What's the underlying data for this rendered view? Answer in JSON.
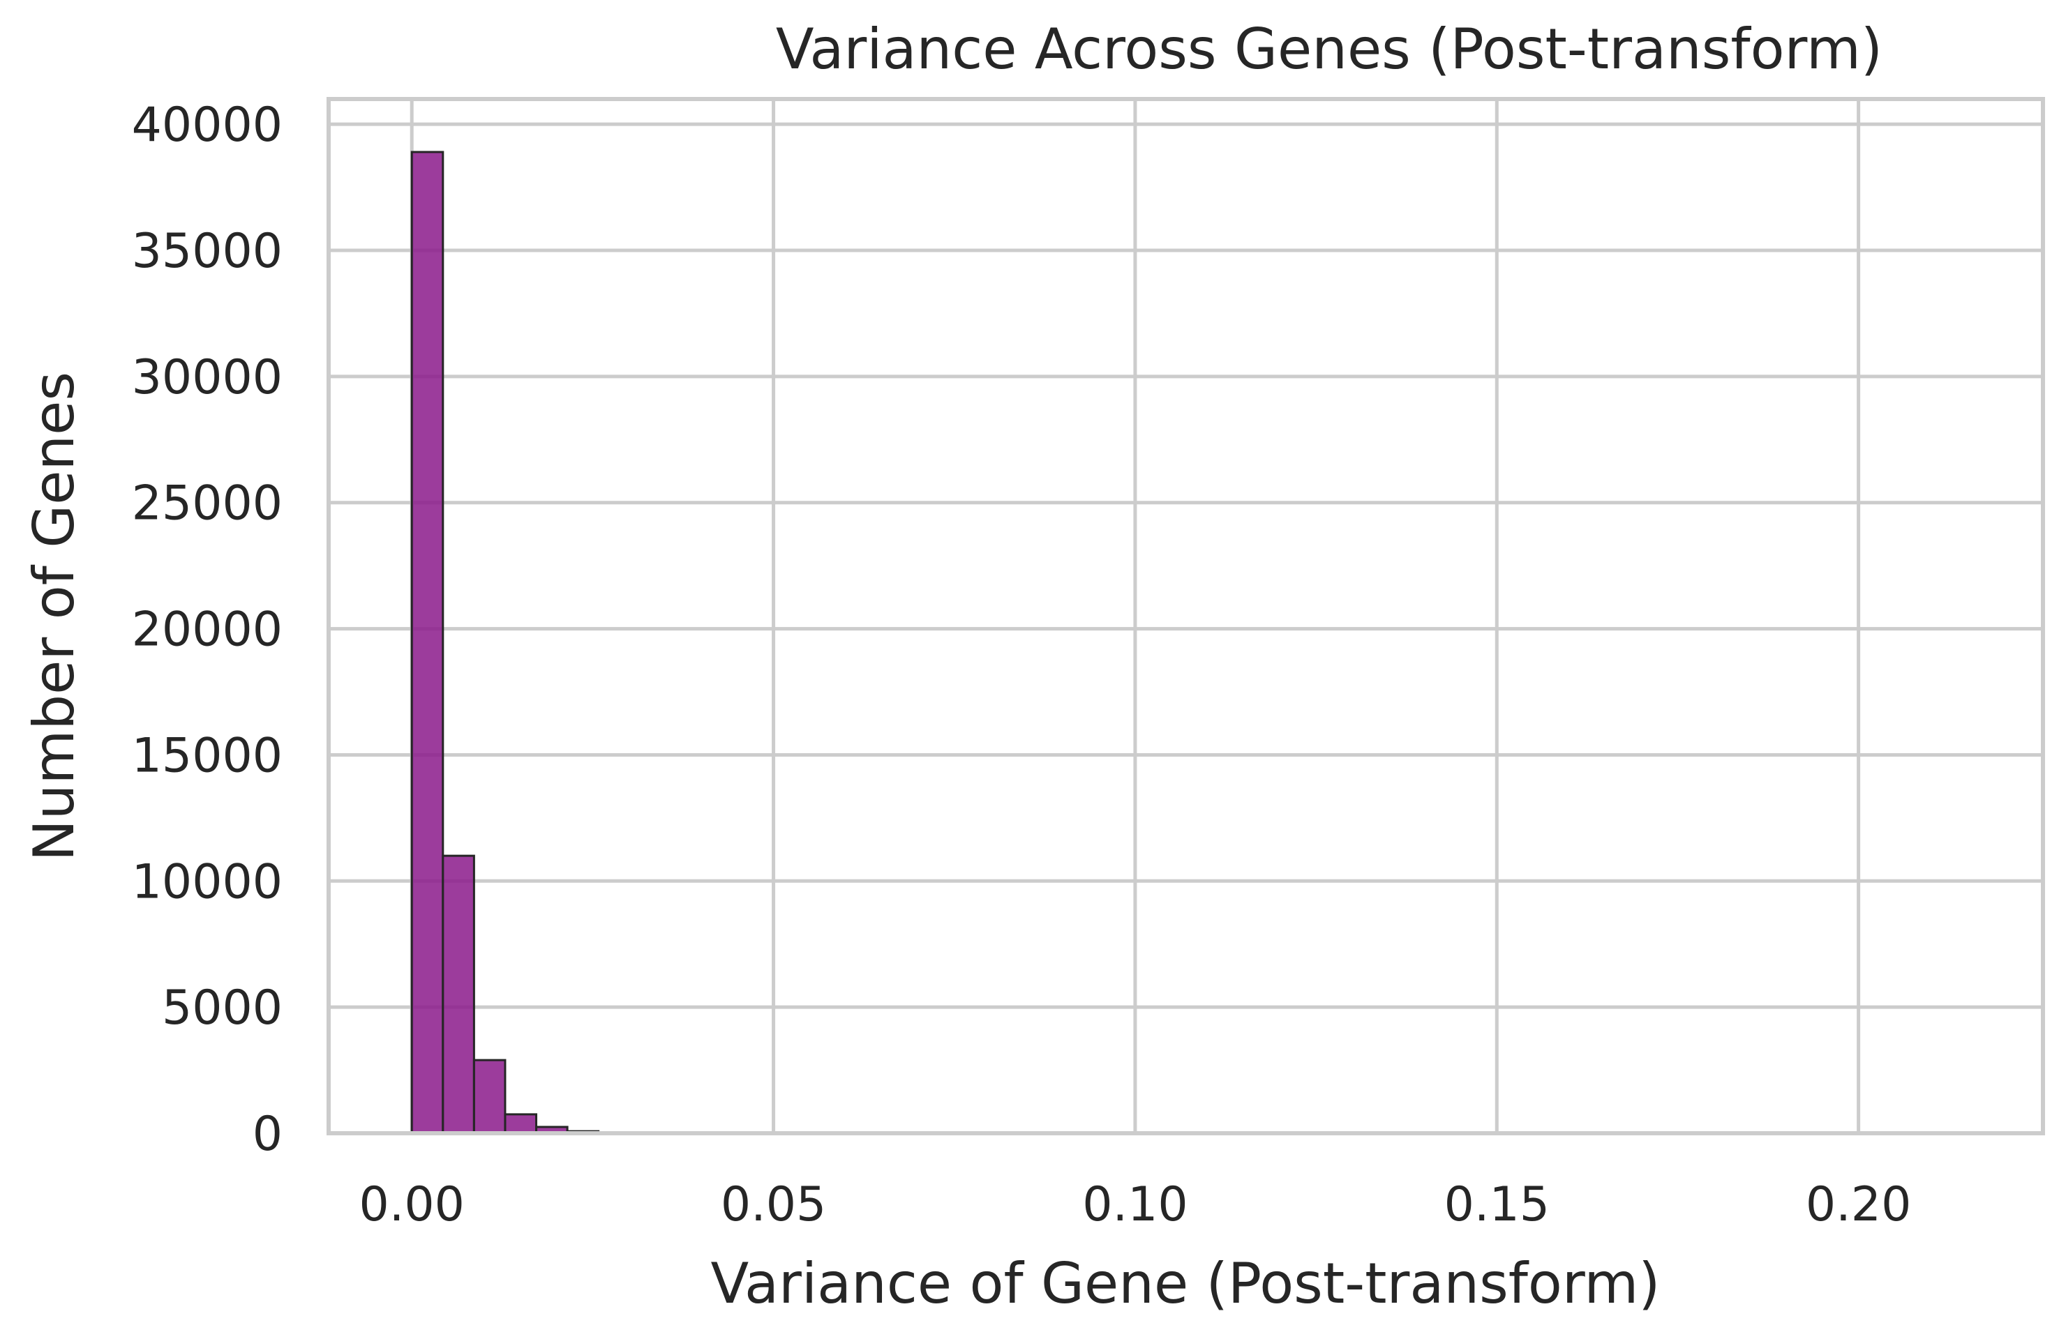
{
  "chart_data": {
    "type": "bar",
    "title": "Variance Across Genes (Post-transform)",
    "xlabel": "Variance of Gene (Post-transform)",
    "ylabel": "Number of Genes",
    "xlim": [
      -0.0115,
      0.2255
    ],
    "ylim": [
      0,
      41000
    ],
    "x_ticks": [
      0.0,
      0.05,
      0.1,
      0.15,
      0.2
    ],
    "x_tick_labels": [
      "0.00",
      "0.05",
      "0.10",
      "0.15",
      "0.20"
    ],
    "y_ticks": [
      0,
      5000,
      10000,
      15000,
      20000,
      25000,
      30000,
      35000,
      40000
    ],
    "y_tick_labels": [
      "0",
      "5000",
      "10000",
      "15000",
      "20000",
      "25000",
      "30000",
      "35000",
      "40000"
    ],
    "grid": true,
    "bar_color": "#8b1a8b",
    "bar_edge_color": "#262626",
    "bins": [
      {
        "x0": 0.0,
        "x1": 0.0043,
        "count": 38900
      },
      {
        "x0": 0.0043,
        "x1": 0.0086,
        "count": 11000
      },
      {
        "x0": 0.0086,
        "x1": 0.0129,
        "count": 2900
      },
      {
        "x0": 0.0129,
        "x1": 0.0172,
        "count": 750
      },
      {
        "x0": 0.0172,
        "x1": 0.0215,
        "count": 250
      },
      {
        "x0": 0.0215,
        "x1": 0.0258,
        "count": 80
      },
      {
        "x0": 0.0258,
        "x1": 0.0301,
        "count": 30
      }
    ]
  }
}
